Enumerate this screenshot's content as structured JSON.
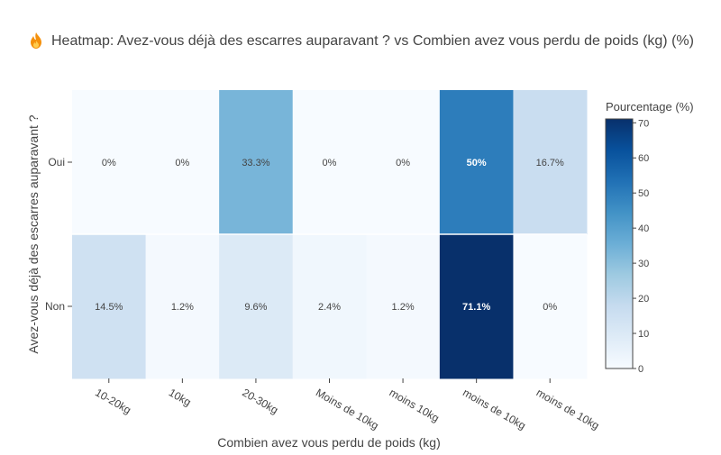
{
  "title": {
    "icon": "fire-icon",
    "text": "Heatmap: Avez-vous déjà des escarres auparavant ? vs Combien avez vous perdu de poids (kg) (%)"
  },
  "chart_data": {
    "type": "heatmap",
    "title": "Heatmap: Avez-vous déjà des escarres auparavant ? vs Combien avez vous perdu de poids (kg) (%)",
    "xlabel": "Combien avez vous perdu de poids (kg)",
    "ylabel": "Avez-vous déjà des escarres auparavant ?",
    "x_categories": [
      "10-20kg",
      "10kg",
      "20-30kg",
      "Moins de 10kg",
      "moins 10kg",
      "moins de 10kg",
      "moins de 10kg"
    ],
    "y_categories": [
      "Oui",
      "Non"
    ],
    "values": [
      [
        0,
        0,
        33.3,
        0,
        0,
        50,
        16.7
      ],
      [
        14.5,
        1.2,
        9.6,
        2.4,
        1.2,
        71.1,
        0
      ]
    ],
    "cell_labels": [
      [
        "0%",
        "0%",
        "33.3%",
        "0%",
        "0%",
        "50%",
        "16.7%"
      ],
      [
        "14.5%",
        "1.2%",
        "9.6%",
        "2.4%",
        "1.2%",
        "71.1%",
        "0%"
      ]
    ],
    "colorscale": "Blues",
    "colorbar": {
      "title": "Pourcentage (%)",
      "range": [
        0,
        71.1
      ],
      "ticks": [
        0,
        10,
        20,
        30,
        40,
        50,
        60,
        70
      ]
    }
  }
}
